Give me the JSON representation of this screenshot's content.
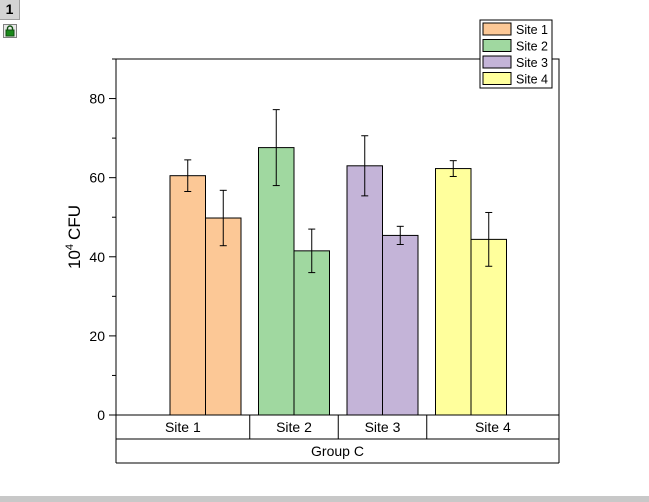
{
  "page_tab": {
    "label": "1"
  },
  "icons": {
    "lock": "lock-icon"
  },
  "chart_data": {
    "type": "bar",
    "ylabel": "CFU",
    "ylabel_prefix": "10",
    "ylabel_exponent": "4",
    "ylim": [
      0,
      90
    ],
    "yticks": [
      0,
      20,
      40,
      60,
      80
    ],
    "categories": [
      "Site 1",
      "Site 2",
      "Site 3",
      "Site 4"
    ],
    "group_label": "Group C",
    "legend_position": "top-right",
    "bars": [
      {
        "category": "Site 1",
        "color": "#fcc896",
        "values": [
          60.5,
          49.8
        ],
        "errors": [
          4.0,
          7.0
        ]
      },
      {
        "category": "Site 2",
        "color": "#a0d8a0",
        "values": [
          67.6,
          41.5
        ],
        "errors": [
          9.6,
          5.5
        ]
      },
      {
        "category": "Site 3",
        "color": "#c4b4d8",
        "values": [
          63.0,
          45.4
        ],
        "errors": [
          7.6,
          2.3
        ]
      },
      {
        "category": "Site 4",
        "color": "#ffff9c",
        "values": [
          62.3,
          44.4
        ],
        "errors": [
          2.0,
          6.8
        ]
      }
    ],
    "legend": [
      {
        "label": "Site 1",
        "color": "#fcc896"
      },
      {
        "label": "Site 2",
        "color": "#a0d8a0"
      },
      {
        "label": "Site 3",
        "color": "#c4b4d8"
      },
      {
        "label": "Site 4",
        "color": "#ffff9c"
      }
    ]
  }
}
